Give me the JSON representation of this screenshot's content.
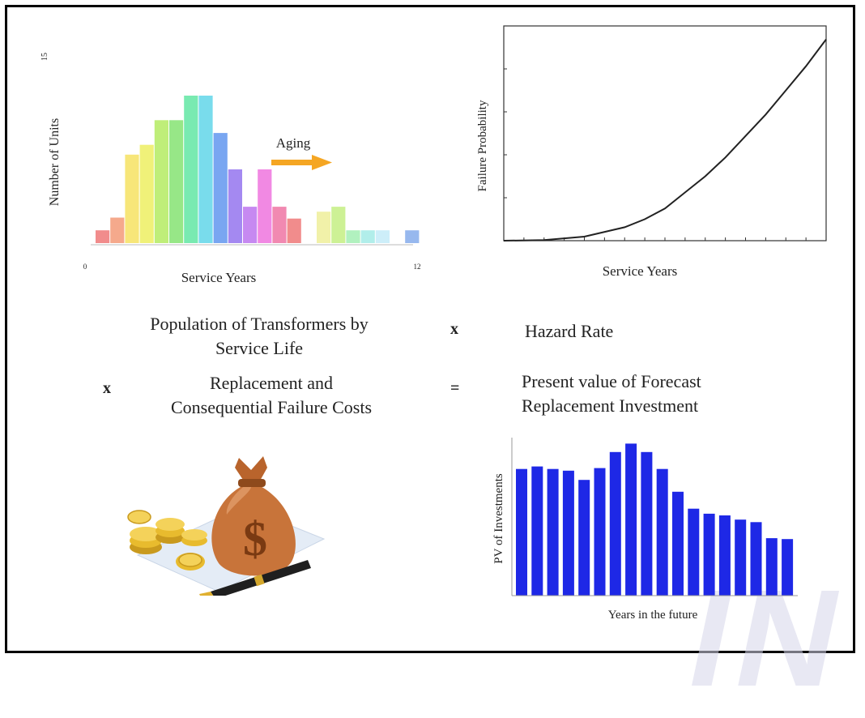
{
  "watermark": "IN",
  "chart_data": [
    {
      "type": "bar",
      "title": "",
      "xlabel": "Service Years",
      "ylabel": "Number of Units",
      "x_tick_labels": [
        "0",
        "12"
      ],
      "y_tick_labels": [
        "15"
      ],
      "ylim": [
        0,
        15
      ],
      "annotation": "Aging",
      "values": [
        1.3,
        2.6,
        9,
        10,
        12.5,
        12.5,
        15,
        15,
        11.2,
        7.5,
        3.7,
        7.5,
        3.7,
        2.5,
        0,
        3.2,
        3.7,
        1.3,
        1.3,
        1.3,
        0,
        1.3
      ],
      "colors": [
        "#f08080",
        "#f4a080",
        "#f6e36a",
        "#eef06a",
        "#b8ec6a",
        "#8ce47a",
        "#6ae8a8",
        "#6ad8ea",
        "#6a9cf0",
        "#9a7cf0",
        "#c07cf0",
        "#f07ce0",
        "#f07ca8",
        "#f08080",
        "#ffffff",
        "#f0f0a0",
        "#c8f08a",
        "#a8f0b8",
        "#a8ece8",
        "#c8ecf8",
        "#ffffff",
        "#8cb0ec"
      ]
    },
    {
      "type": "line",
      "title": "",
      "xlabel": "Service Years",
      "ylabel": "Failure Probability",
      "x": [
        0,
        2,
        4,
        6,
        7,
        8,
        9,
        10,
        11,
        12,
        13,
        14,
        15,
        16
      ],
      "y": [
        0,
        0.2,
        1.5,
        5,
        8,
        12,
        18,
        24,
        31,
        39,
        47,
        56,
        65,
        75
      ],
      "xlim": [
        0,
        16
      ],
      "ylim": [
        0,
        80
      ],
      "grid": false
    },
    {
      "type": "bar",
      "title": "",
      "xlabel": "Years in the future",
      "ylabel": "PV of Investments",
      "values": [
        150,
        153,
        150,
        148,
        137,
        151,
        170,
        180,
        170,
        150,
        123,
        103,
        97,
        95,
        90,
        87,
        68,
        67
      ],
      "ylim": [
        0,
        190
      ],
      "color": "#1e28e6"
    }
  ],
  "formula": {
    "population_line1": "Population of Transformers by",
    "population_line2": "Service Life",
    "times_sign": "x",
    "hazard_rate": "Hazard Rate",
    "costs_line1": "Replacement and",
    "costs_line2": "Consequential Failure Costs",
    "equals_sign": "=",
    "result_line1": "Present value of Forecast",
    "result_line2": "Replacement Investment"
  },
  "colors": {
    "arrow": "#f5a623",
    "pv_bar": "#1e28e6"
  },
  "icons": {
    "money_bag": "money-bag-with-coins-and-pen-icon"
  }
}
